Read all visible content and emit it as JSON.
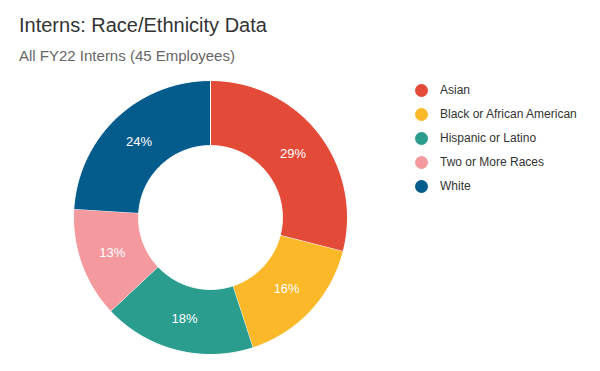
{
  "chart_data": {
    "type": "pie",
    "title": "Interns: Race/Ethnicity Data",
    "subtitle": "All FY22 Interns (45 Employees)",
    "categories": [
      "Asian",
      "Black or African American",
      "Hispanic or Latino",
      "Two or More Races",
      "White"
    ],
    "values": [
      29,
      16,
      18,
      13,
      24
    ],
    "value_labels": [
      "29%",
      "16%",
      "18%",
      "13%",
      "24%"
    ],
    "colors": [
      "#e34a38",
      "#fbb829",
      "#2a9d8f",
      "#f49a9f",
      "#045c8c"
    ],
    "data_labels": true,
    "legend": "right"
  }
}
